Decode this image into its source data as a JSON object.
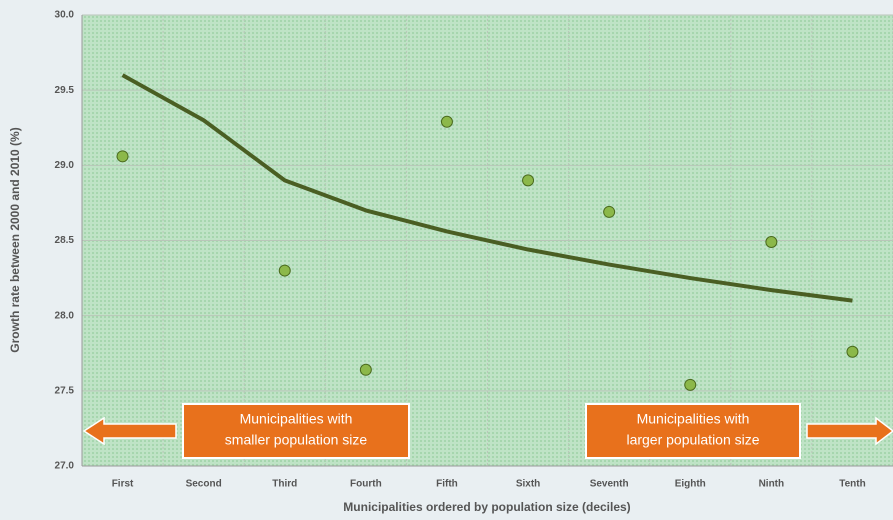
{
  "chart_data": {
    "type": "scatter",
    "y_label": "Growth rate between 2000 and 2010 (%)",
    "x_label": "Municipalities ordered by population size (deciles)",
    "categories": [
      "First",
      "Second",
      "Third",
      "Fourth",
      "Fifth",
      "Sixth",
      "Seventh",
      "Eighth",
      "Ninth",
      "Tenth"
    ],
    "values": [
      29.06,
      null,
      28.3,
      27.64,
      29.29,
      28.9,
      28.69,
      27.54,
      28.49,
      27.76
    ],
    "color": "#8cb84a",
    "trend": {
      "values": [
        29.6,
        29.3,
        28.9,
        28.7,
        28.56,
        28.44,
        28.34,
        28.25,
        28.17,
        28.1
      ],
      "color": "#4a5e23"
    },
    "ylim": [
      27,
      30
    ],
    "yticks": [
      {
        "value": 27,
        "label": "27.0"
      },
      {
        "value": 27.5,
        "label": "27.5"
      },
      {
        "value": 28,
        "label": "28.0"
      },
      {
        "value": 28.5,
        "label": "28.5"
      },
      {
        "value": 29,
        "label": "29.0"
      },
      {
        "value": 29.5,
        "label": "29.5"
      },
      {
        "value": 30,
        "label": "30.0"
      }
    ],
    "grid": true,
    "annotations": [
      {
        "lines": [
          "Municipalities with",
          "smaller  population size"
        ],
        "color": "#e8711c"
      },
      {
        "lines": [
          "Municipalities with",
          "larger population size"
        ],
        "color": "#e8711c"
      }
    ]
  }
}
